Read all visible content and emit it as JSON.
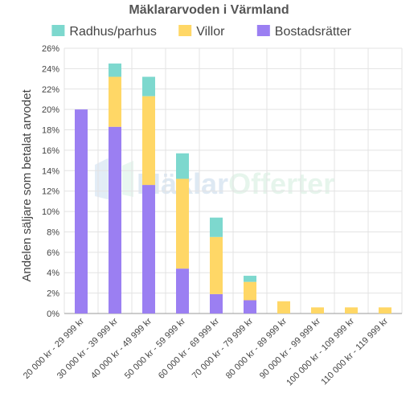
{
  "chart_data": {
    "type": "bar",
    "stacked": true,
    "title": "Mäklararvoden i Värmland",
    "ylabel": "Andelen säljare som betalat arvodet",
    "xlabel": "",
    "ylim": [
      0,
      26
    ],
    "y_ticks": [
      "0%",
      "2%",
      "4%",
      "6%",
      "8%",
      "10%",
      "12%",
      "14%",
      "16%",
      "18%",
      "20%",
      "22%",
      "24%",
      "26%"
    ],
    "grid": true,
    "legend_position": "top",
    "categories": [
      "20 000 kr - 29 999 kr",
      "30 000 kr - 39 999 kr",
      "40 000 kr - 49 999 kr",
      "50 000 kr - 59 999 kr",
      "60 000 kr - 69 999 kr",
      "70 000 kr - 79 999 kr",
      "80 000 kr - 89 999 kr",
      "90 000 kr - 99 999 kr",
      "100 000 kr - 109 999 kr",
      "110 000 kr - 119 999 kr"
    ],
    "series": [
      {
        "name": "Bostadsrätter",
        "color": "#9b7ff2",
        "values": [
          20.0,
          18.3,
          12.6,
          4.4,
          1.9,
          1.3,
          0,
          0,
          0,
          0
        ]
      },
      {
        "name": "Villor",
        "color": "#ffd766",
        "values": [
          0,
          4.9,
          8.7,
          8.8,
          5.6,
          1.8,
          1.2,
          0.6,
          0.6,
          0.6
        ]
      },
      {
        "name": "Radhus/parhus",
        "color": "#7dd8ce",
        "values": [
          0,
          1.3,
          1.9,
          2.5,
          1.9,
          0.6,
          0,
          0,
          0,
          0
        ]
      }
    ],
    "legend_order": [
      "Radhus/parhus",
      "Villor",
      "Bostadsrätter"
    ],
    "watermark": "MäklarOfferter"
  }
}
